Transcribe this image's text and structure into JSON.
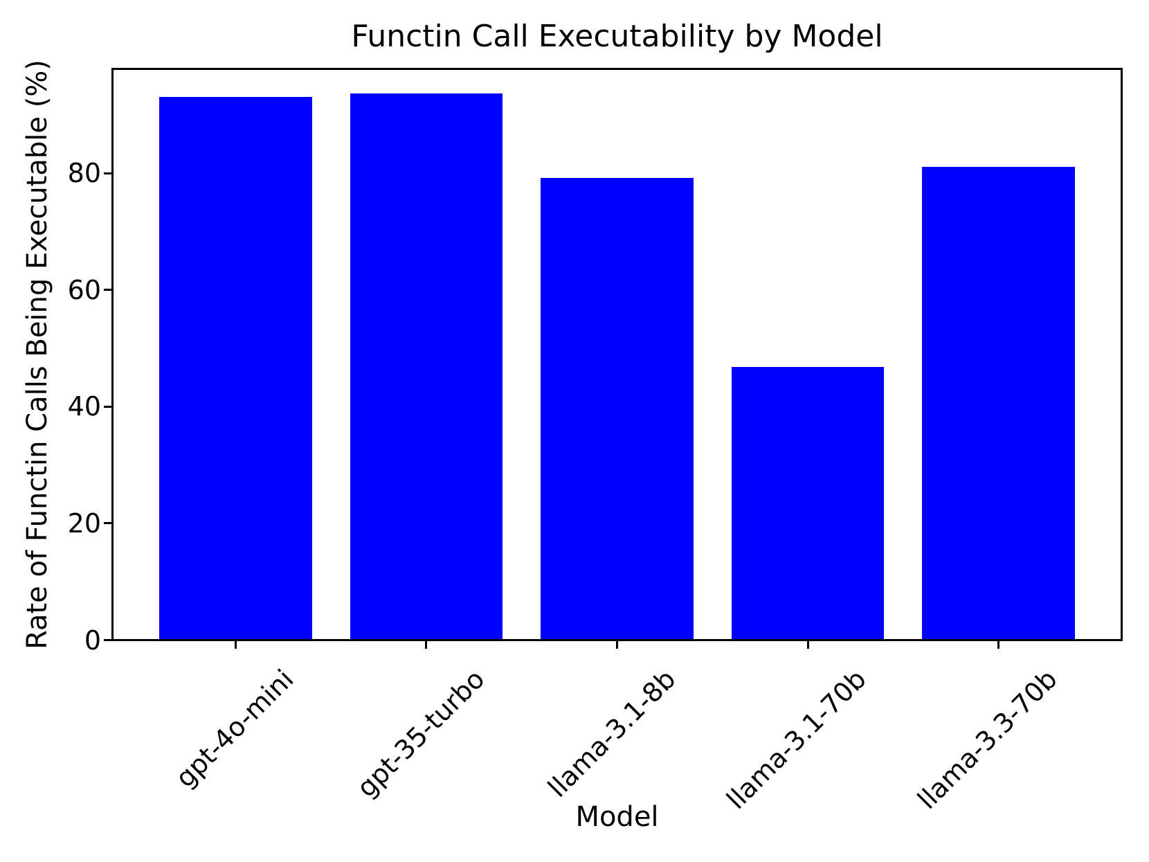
{
  "figure": {
    "background": "#ffffff"
  },
  "chart_data": {
    "type": "bar",
    "title": "Functin Call Executability by Model",
    "xlabel": "Model",
    "ylabel": "Rate of Functin Calls Being Executable (%)",
    "categories": [
      "gpt-4o-mini",
      "gpt-35-turbo",
      "llama-3.1-8b",
      "llama-3.1-70b",
      "llama-3.3-70b"
    ],
    "values": [
      92.9,
      93.5,
      79.0,
      46.6,
      80.9
    ],
    "bar_color": "#0000ff",
    "axis_color": "#000000",
    "text_color": "#000000",
    "ylim": [
      0,
      97.5
    ],
    "yticks": [
      0,
      20,
      40,
      60,
      80
    ],
    "xtick_rotation_deg": 45,
    "bar_width_fraction": 0.8,
    "grid": false,
    "legend": false
  }
}
